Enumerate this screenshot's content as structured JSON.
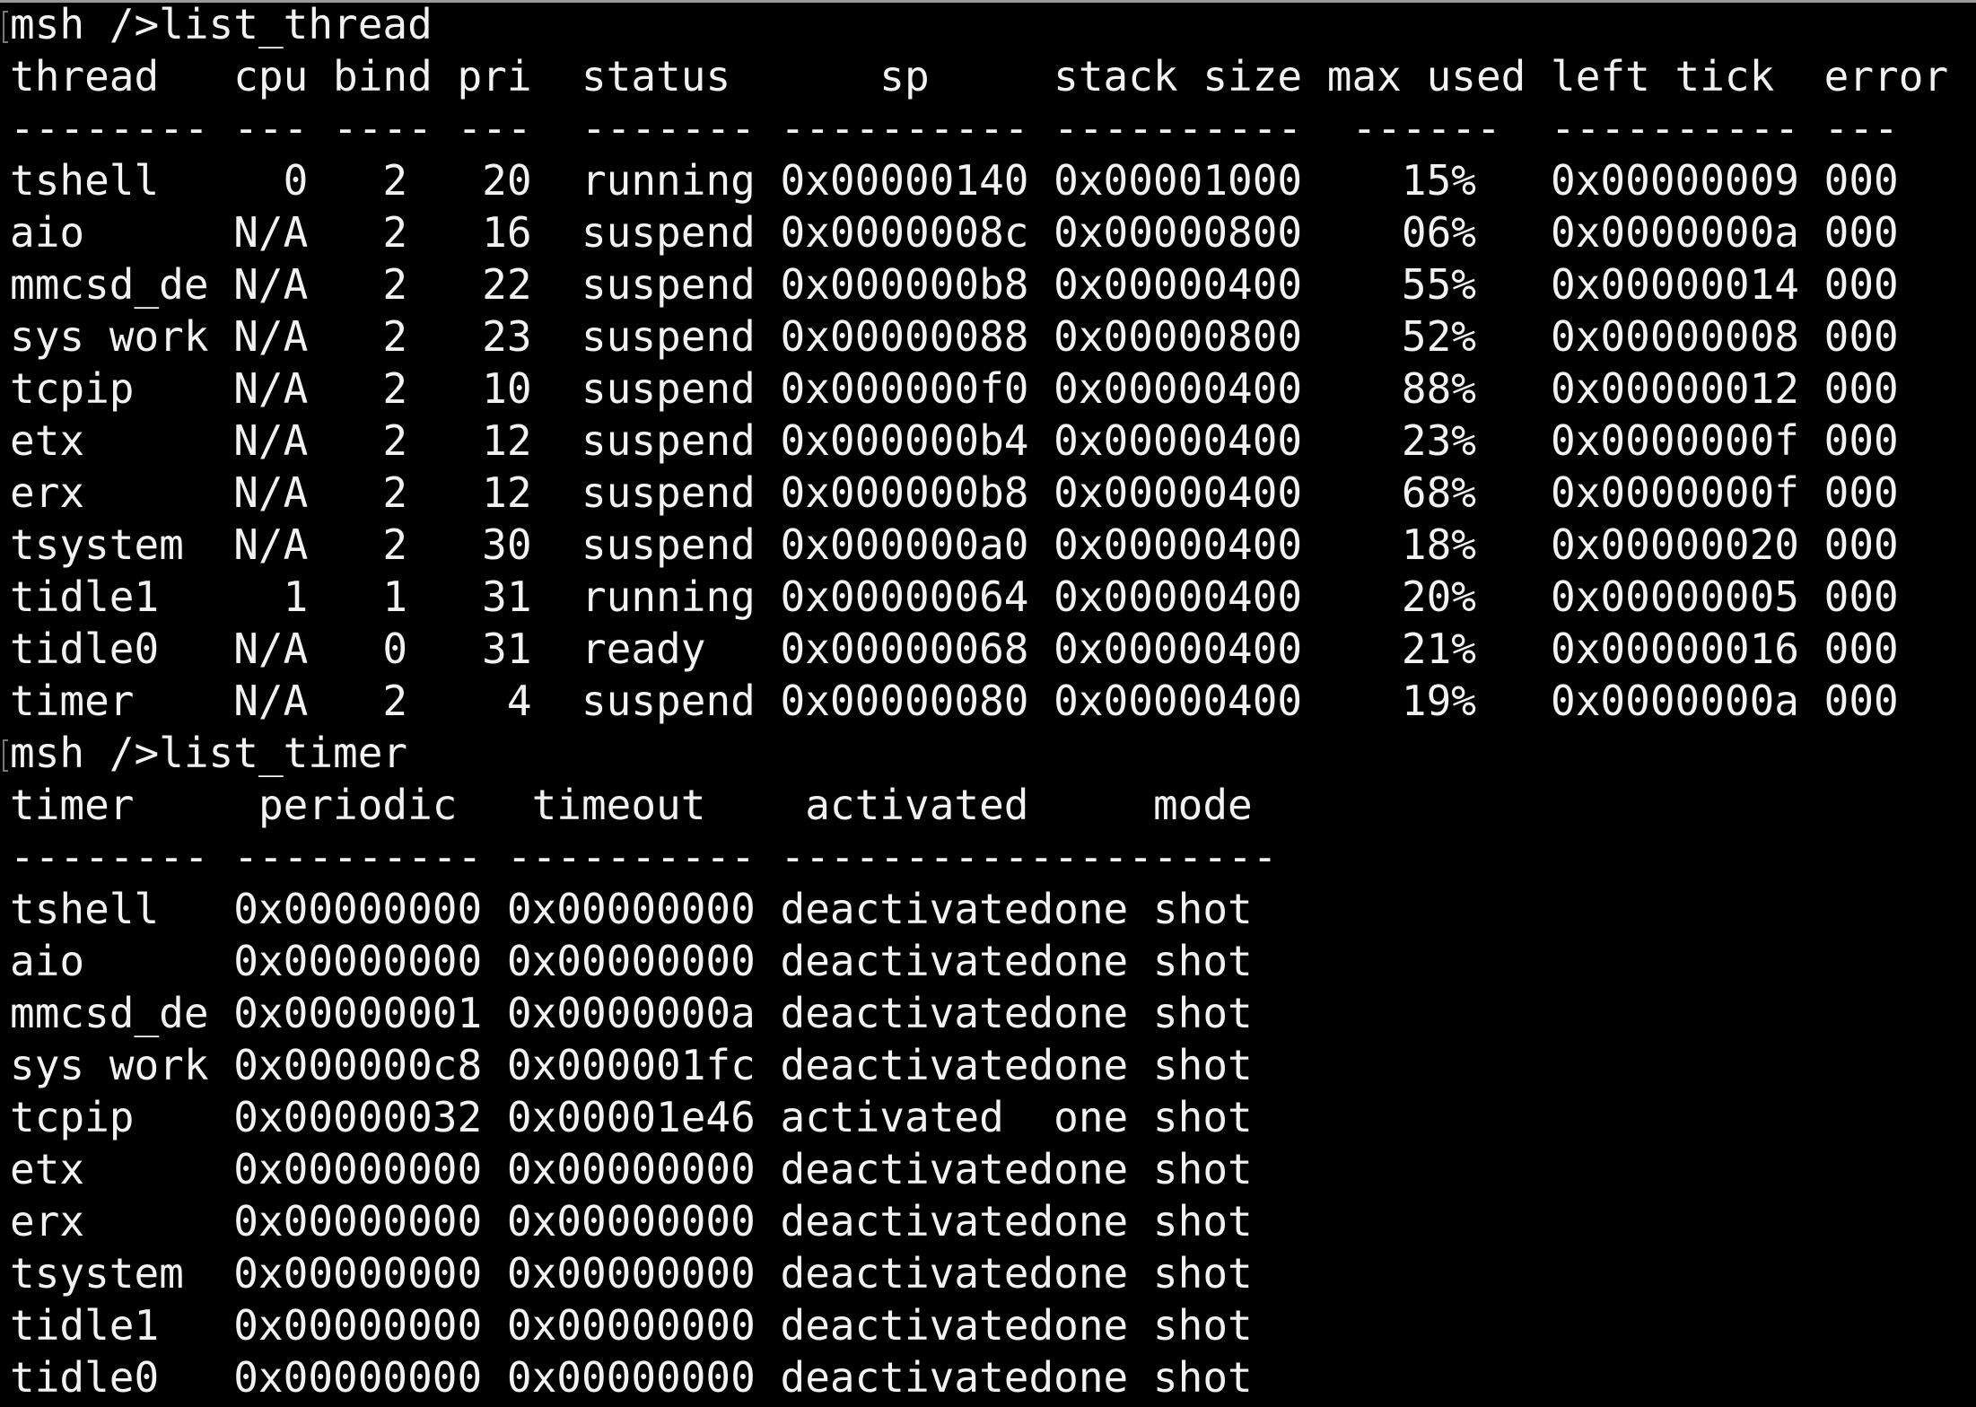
{
  "colors": {
    "background": "#000000",
    "text": "#f2f2f2"
  },
  "thread_section": {
    "prompt": "msh />list_thread",
    "headers": [
      "thread",
      "cpu",
      "bind",
      "pri",
      "status",
      "sp",
      "stack size",
      "max used",
      "left tick",
      "error"
    ],
    "dashes": [
      "--------",
      "---",
      "----",
      "---",
      "-------",
      "----------",
      "----------",
      "------",
      "----------",
      "---"
    ],
    "rows": [
      [
        "tshell",
        "0",
        "2",
        "20",
        "running",
        "0x00000140",
        "0x00001000",
        "15%",
        "0x00000009",
        "000"
      ],
      [
        "aio",
        "N/A",
        "2",
        "16",
        "suspend",
        "0x0000008c",
        "0x00000800",
        "06%",
        "0x0000000a",
        "000"
      ],
      [
        "mmcsd_de",
        "N/A",
        "2",
        "22",
        "suspend",
        "0x000000b8",
        "0x00000400",
        "55%",
        "0x00000014",
        "000"
      ],
      [
        "sys work",
        "N/A",
        "2",
        "23",
        "suspend",
        "0x00000088",
        "0x00000800",
        "52%",
        "0x00000008",
        "000"
      ],
      [
        "tcpip",
        "N/A",
        "2",
        "10",
        "suspend",
        "0x000000f0",
        "0x00000400",
        "88%",
        "0x00000012",
        "000"
      ],
      [
        "etx",
        "N/A",
        "2",
        "12",
        "suspend",
        "0x000000b4",
        "0x00000400",
        "23%",
        "0x0000000f",
        "000"
      ],
      [
        "erx",
        "N/A",
        "2",
        "12",
        "suspend",
        "0x000000b8",
        "0x00000400",
        "68%",
        "0x0000000f",
        "000"
      ],
      [
        "tsystem",
        "N/A",
        "2",
        "30",
        "suspend",
        "0x000000a0",
        "0x00000400",
        "18%",
        "0x00000020",
        "000"
      ],
      [
        "tidle1",
        "1",
        "1",
        "31",
        "running",
        "0x00000064",
        "0x00000400",
        "20%",
        "0x00000005",
        "000"
      ],
      [
        "tidle0",
        "N/A",
        "0",
        "31",
        "ready",
        "0x00000068",
        "0x00000400",
        "21%",
        "0x00000016",
        "000"
      ],
      [
        "timer",
        "N/A",
        "2",
        "4",
        "suspend",
        "0x00000080",
        "0x00000400",
        "19%",
        "0x0000000a",
        "000"
      ]
    ]
  },
  "timer_section": {
    "prompt": "msh />list_timer",
    "headers": [
      "timer",
      "periodic",
      "timeout",
      "activated",
      "mode"
    ],
    "dashes": [
      "--------",
      "----------",
      "----------",
      "-----------",
      "---------"
    ],
    "rows": [
      [
        "tshell",
        "0x00000000",
        "0x00000000",
        "deactivated",
        "one shot"
      ],
      [
        "aio",
        "0x00000000",
        "0x00000000",
        "deactivated",
        "one shot"
      ],
      [
        "mmcsd_de",
        "0x00000001",
        "0x0000000a",
        "deactivated",
        "one shot"
      ],
      [
        "sys work",
        "0x000000c8",
        "0x000001fc",
        "deactivated",
        "one shot"
      ],
      [
        "tcpip",
        "0x00000032",
        "0x00001e46",
        "activated",
        "one shot"
      ],
      [
        "etx",
        "0x00000000",
        "0x00000000",
        "deactivated",
        "one shot"
      ],
      [
        "erx",
        "0x00000000",
        "0x00000000",
        "deactivated",
        "one shot"
      ],
      [
        "tsystem",
        "0x00000000",
        "0x00000000",
        "deactivated",
        "one shot"
      ],
      [
        "tidle1",
        "0x00000000",
        "0x00000000",
        "deactivated",
        "one shot"
      ],
      [
        "tidle0",
        "0x00000000",
        "0x00000000",
        "deactivated",
        "one shot"
      ]
    ]
  }
}
